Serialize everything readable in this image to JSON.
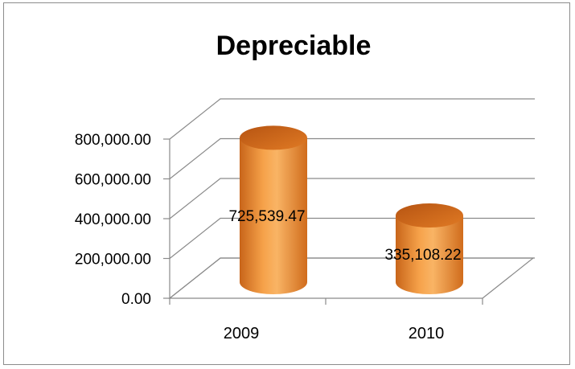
{
  "chart_data": {
    "type": "bar",
    "style": "3d-cylinder",
    "title": "Depreciable",
    "categories": [
      "2009",
      "2010"
    ],
    "values": [
      725539.47,
      335108.22
    ],
    "data_labels": [
      "725,539.47",
      "335,108.22"
    ],
    "ylim": [
      0,
      800000
    ],
    "yticks": [
      0,
      200000,
      400000,
      600000,
      800000
    ],
    "ytick_labels": [
      "0.00",
      "200,000.00",
      "400,000.00",
      "600,000.00",
      "800,000.00"
    ],
    "grid": true,
    "legend": "none",
    "bar_color": "#f28c2a"
  }
}
